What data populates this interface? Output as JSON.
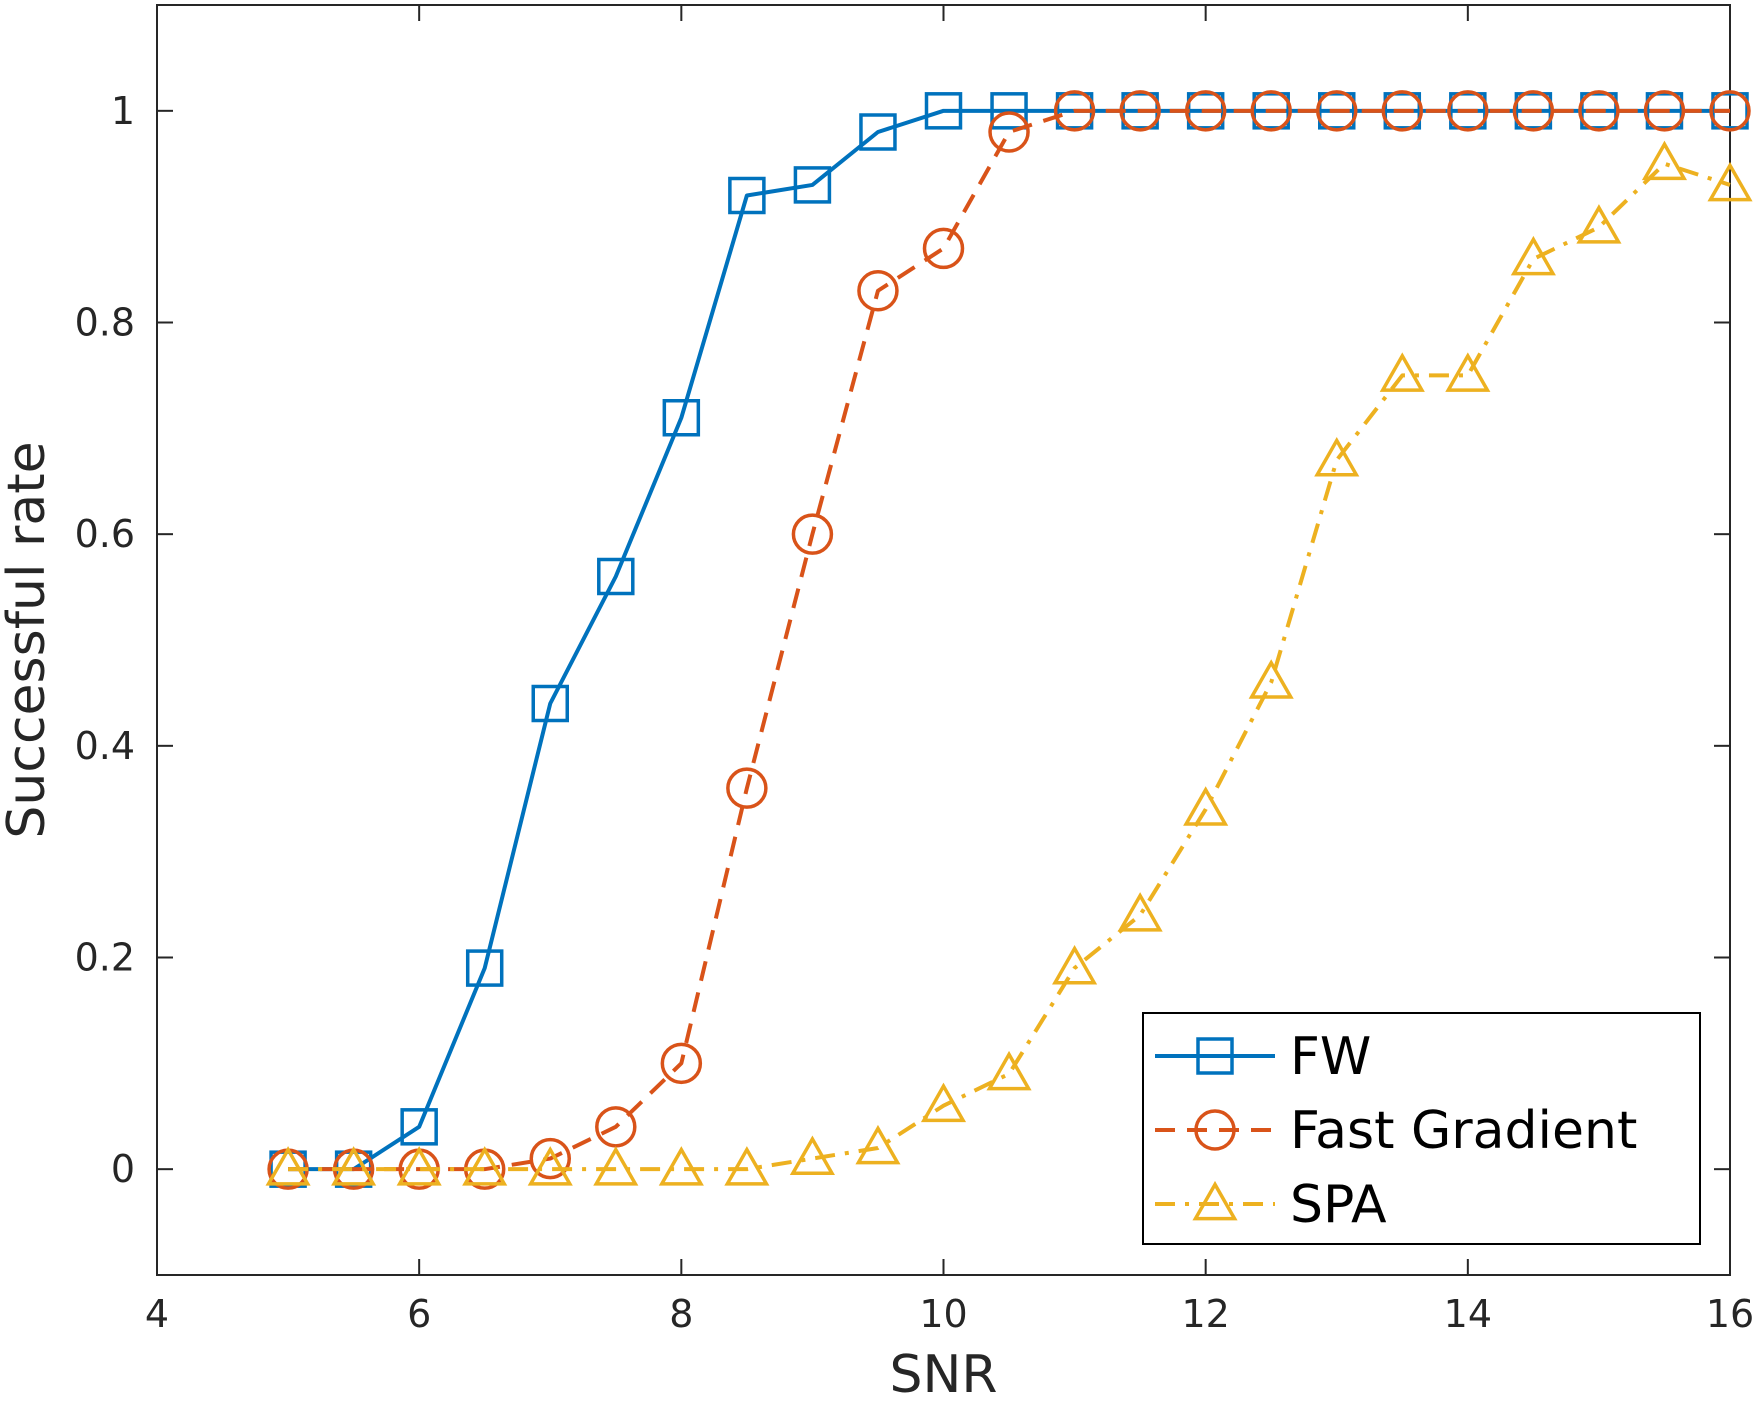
{
  "chart_data": {
    "type": "line",
    "title": "",
    "xlabel": "SNR",
    "ylabel": "Successful rate",
    "xlim": [
      4,
      16
    ],
    "ylim": [
      -0.1,
      1.1
    ],
    "xticks": [
      4,
      6,
      8,
      10,
      12,
      14,
      16
    ],
    "xtick_labels": [
      "4",
      "6",
      "8",
      "10",
      "12",
      "14",
      "16"
    ],
    "yticks": [
      0,
      0.2,
      0.4,
      0.6,
      0.8,
      1
    ],
    "ytick_labels": [
      "0",
      "0.2",
      "0.4",
      "0.6",
      "0.8",
      "1"
    ],
    "grid": false,
    "legend_position": "bottom-right",
    "x": [
      5,
      5.5,
      6,
      6.5,
      7,
      7.5,
      8,
      8.5,
      9,
      9.5,
      10,
      10.5,
      11,
      11.5,
      12,
      12.5,
      13,
      13.5,
      14,
      14.5,
      15,
      15.5,
      16
    ],
    "series": [
      {
        "name": "FW",
        "color": "#0072bd",
        "marker": "square",
        "line_style": "solid",
        "values": [
          0,
          0,
          0.04,
          0.19,
          0.44,
          0.56,
          0.71,
          0.92,
          0.93,
          0.98,
          1,
          1,
          1,
          1,
          1,
          1,
          1,
          1,
          1,
          1,
          1,
          1,
          1
        ]
      },
      {
        "name": "Fast Gradient",
        "color": "#d95319",
        "marker": "circle",
        "line_style": "dashed",
        "values": [
          0,
          0,
          0,
          0,
          0.01,
          0.04,
          0.1,
          0.36,
          0.6,
          0.83,
          0.87,
          0.98,
          1,
          1,
          1,
          1,
          1,
          1,
          1,
          1,
          1,
          1,
          1
        ]
      },
      {
        "name": "SPA",
        "color": "#edb120",
        "marker": "triangle",
        "line_style": "dashdot",
        "values": [
          0,
          0,
          0,
          0,
          0,
          0,
          0,
          0,
          0.01,
          0.02,
          0.06,
          0.09,
          0.19,
          0.24,
          0.34,
          0.46,
          0.67,
          0.75,
          0.75,
          0.86,
          0.89,
          0.95,
          0.93
        ]
      }
    ]
  }
}
